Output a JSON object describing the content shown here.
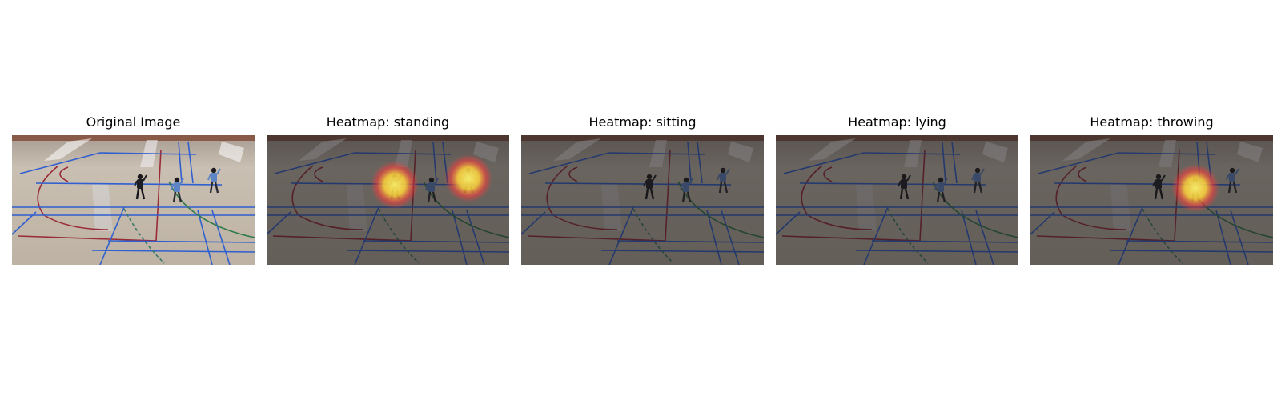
{
  "figure": {
    "panels": [
      {
        "title": "Original Image",
        "kind": "original",
        "highlights": []
      },
      {
        "title": "Heatmap: standing",
        "kind": "heatmap",
        "highlights": [
          "person-left",
          "person-right"
        ]
      },
      {
        "title": "Heatmap: sitting",
        "kind": "heatmap",
        "highlights": []
      },
      {
        "title": "Heatmap: lying",
        "kind": "heatmap",
        "highlights": []
      },
      {
        "title": "Heatmap: throwing",
        "kind": "heatmap",
        "highlights": [
          "person-middle"
        ]
      }
    ],
    "colors": {
      "floor": "#c9bfb2",
      "floor_dim": "#6a645e",
      "blue_line": "#2f5fd0",
      "red_line": "#9a2a36",
      "green_line": "#2f7a4a",
      "heat_center": "#fff36a",
      "heat_edge": "#ff3b3b"
    }
  }
}
